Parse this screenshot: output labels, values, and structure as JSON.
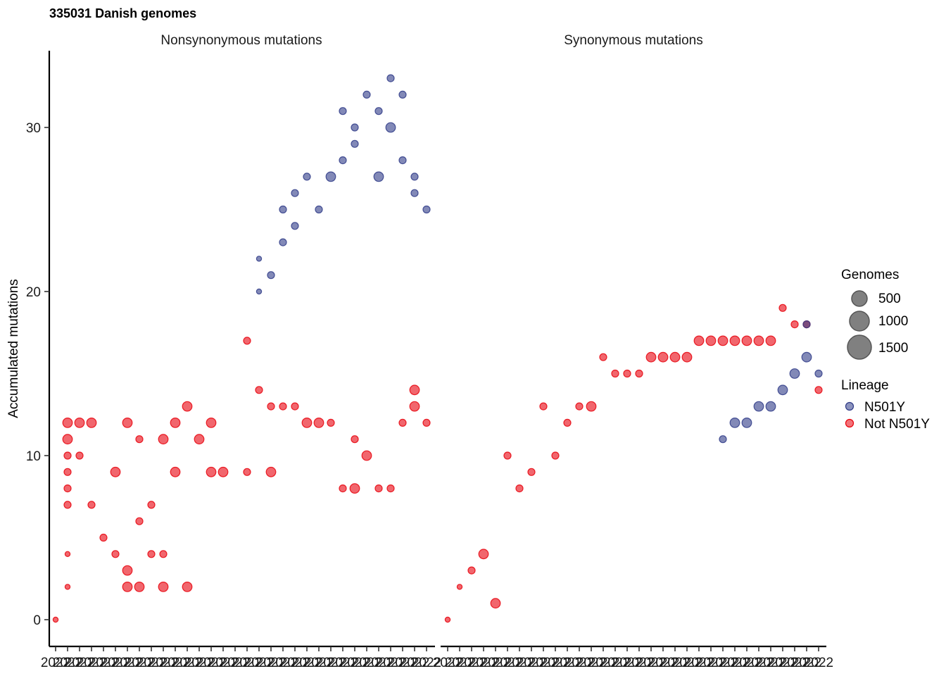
{
  "chart_data": {
    "type": "scatter",
    "title": "335031 Danish genomes",
    "ylabel": "Accumulated mutations",
    "xlabel": "",
    "ylim": [
      -1,
      35
    ],
    "yticks": [
      0,
      10,
      20,
      30
    ],
    "x_tick_label": "2022",
    "x_categories": 32,
    "grid": false,
    "legend_position": "right",
    "colors": {
      "N501Y": "#2e3a87",
      "Not N501Y": "#e8000b"
    },
    "panels": [
      {
        "name": "Nonsynonymous mutations",
        "red": [
          [
            0,
            0,
            1
          ],
          [
            1,
            2,
            1
          ],
          [
            1,
            4,
            1
          ],
          [
            1,
            9,
            2
          ],
          [
            1,
            10,
            2
          ],
          [
            1,
            11,
            3
          ],
          [
            1,
            12,
            3
          ],
          [
            2,
            12,
            3
          ],
          [
            2,
            10,
            2
          ],
          [
            1,
            8,
            2
          ],
          [
            1,
            7,
            2
          ],
          [
            3,
            7,
            2
          ],
          [
            3,
            12,
            3
          ],
          [
            4,
            5,
            2
          ],
          [
            5,
            4,
            2
          ],
          [
            5,
            9,
            3
          ],
          [
            6,
            2,
            3
          ],
          [
            6,
            3,
            3
          ],
          [
            6,
            12,
            3
          ],
          [
            7,
            2,
            3
          ],
          [
            7,
            6,
            2
          ],
          [
            7,
            11,
            2
          ],
          [
            8,
            4,
            2
          ],
          [
            8,
            7,
            2
          ],
          [
            9,
            2,
            3
          ],
          [
            9,
            4,
            2
          ],
          [
            9,
            11,
            3
          ],
          [
            10,
            9,
            3
          ],
          [
            10,
            12,
            3
          ],
          [
            11,
            2,
            3
          ],
          [
            11,
            13,
            3
          ],
          [
            12,
            11,
            3
          ],
          [
            13,
            9,
            3
          ],
          [
            13,
            12,
            3
          ],
          [
            14,
            9,
            3
          ],
          [
            16,
            9,
            2
          ],
          [
            16,
            17,
            2
          ],
          [
            17,
            14,
            2
          ],
          [
            18,
            9,
            3
          ],
          [
            18,
            13,
            2
          ],
          [
            19,
            13,
            2
          ],
          [
            20,
            13,
            2
          ],
          [
            21,
            12,
            3
          ],
          [
            22,
            12,
            3
          ],
          [
            23,
            12,
            2
          ],
          [
            24,
            8,
            2
          ],
          [
            25,
            8,
            3
          ],
          [
            25,
            11,
            2
          ],
          [
            26,
            10,
            3
          ],
          [
            27,
            8,
            2
          ],
          [
            28,
            8,
            2
          ],
          [
            29,
            12,
            2
          ],
          [
            30,
            13,
            3
          ],
          [
            30,
            14,
            3
          ],
          [
            31,
            12,
            2
          ]
        ],
        "blue": [
          [
            17,
            22,
            1
          ],
          [
            17,
            20,
            1
          ],
          [
            18,
            21,
            2
          ],
          [
            19,
            23,
            2
          ],
          [
            19,
            25,
            2
          ],
          [
            20,
            24,
            2
          ],
          [
            20,
            26,
            2
          ],
          [
            21,
            27,
            2
          ],
          [
            22,
            25,
            2
          ],
          [
            23,
            27,
            3
          ],
          [
            24,
            28,
            2
          ],
          [
            24,
            31,
            2
          ],
          [
            25,
            29,
            2
          ],
          [
            25,
            30,
            2
          ],
          [
            26,
            32,
            2
          ],
          [
            27,
            27,
            3
          ],
          [
            27,
            31,
            2
          ],
          [
            28,
            33,
            2
          ],
          [
            28,
            30,
            3
          ],
          [
            29,
            32,
            2
          ],
          [
            29,
            28,
            2
          ],
          [
            30,
            27,
            2
          ],
          [
            30,
            26,
            2
          ],
          [
            31,
            25,
            2
          ]
        ]
      },
      {
        "name": "Synonymous mutations",
        "red": [
          [
            0,
            0,
            1
          ],
          [
            1,
            2,
            1
          ],
          [
            2,
            3,
            2
          ],
          [
            3,
            4,
            3
          ],
          [
            4,
            1,
            3
          ],
          [
            5,
            10,
            2
          ],
          [
            6,
            8,
            2
          ],
          [
            7,
            9,
            2
          ],
          [
            8,
            13,
            2
          ],
          [
            9,
            10,
            2
          ],
          [
            10,
            12,
            2
          ],
          [
            11,
            13,
            2
          ],
          [
            12,
            13,
            3
          ],
          [
            13,
            16,
            2
          ],
          [
            14,
            15,
            2
          ],
          [
            15,
            15,
            2
          ],
          [
            16,
            15,
            2
          ],
          [
            17,
            16,
            3
          ],
          [
            18,
            16,
            3
          ],
          [
            19,
            16,
            3
          ],
          [
            20,
            16,
            3
          ],
          [
            21,
            17,
            3
          ],
          [
            22,
            17,
            3
          ],
          [
            23,
            17,
            3
          ],
          [
            24,
            17,
            3
          ],
          [
            25,
            17,
            3
          ],
          [
            26,
            17,
            3
          ],
          [
            27,
            17,
            3
          ],
          [
            28,
            19,
            2
          ],
          [
            29,
            18,
            2
          ],
          [
            30,
            18,
            2
          ],
          [
            31,
            14,
            2
          ]
        ],
        "blue": [
          [
            23,
            11,
            2
          ],
          [
            24,
            12,
            3
          ],
          [
            25,
            12,
            3
          ],
          [
            26,
            13,
            3
          ],
          [
            27,
            13,
            3
          ],
          [
            28,
            14,
            3
          ],
          [
            29,
            15,
            3
          ],
          [
            30,
            16,
            3
          ],
          [
            30,
            18,
            2
          ],
          [
            31,
            15,
            2
          ]
        ]
      }
    ],
    "size_legend": {
      "title": "Genomes",
      "values": [
        500,
        1000,
        1500
      ]
    },
    "color_legend": {
      "title": "Lineage",
      "entries": [
        "N501Y",
        "Not N501Y"
      ]
    }
  }
}
